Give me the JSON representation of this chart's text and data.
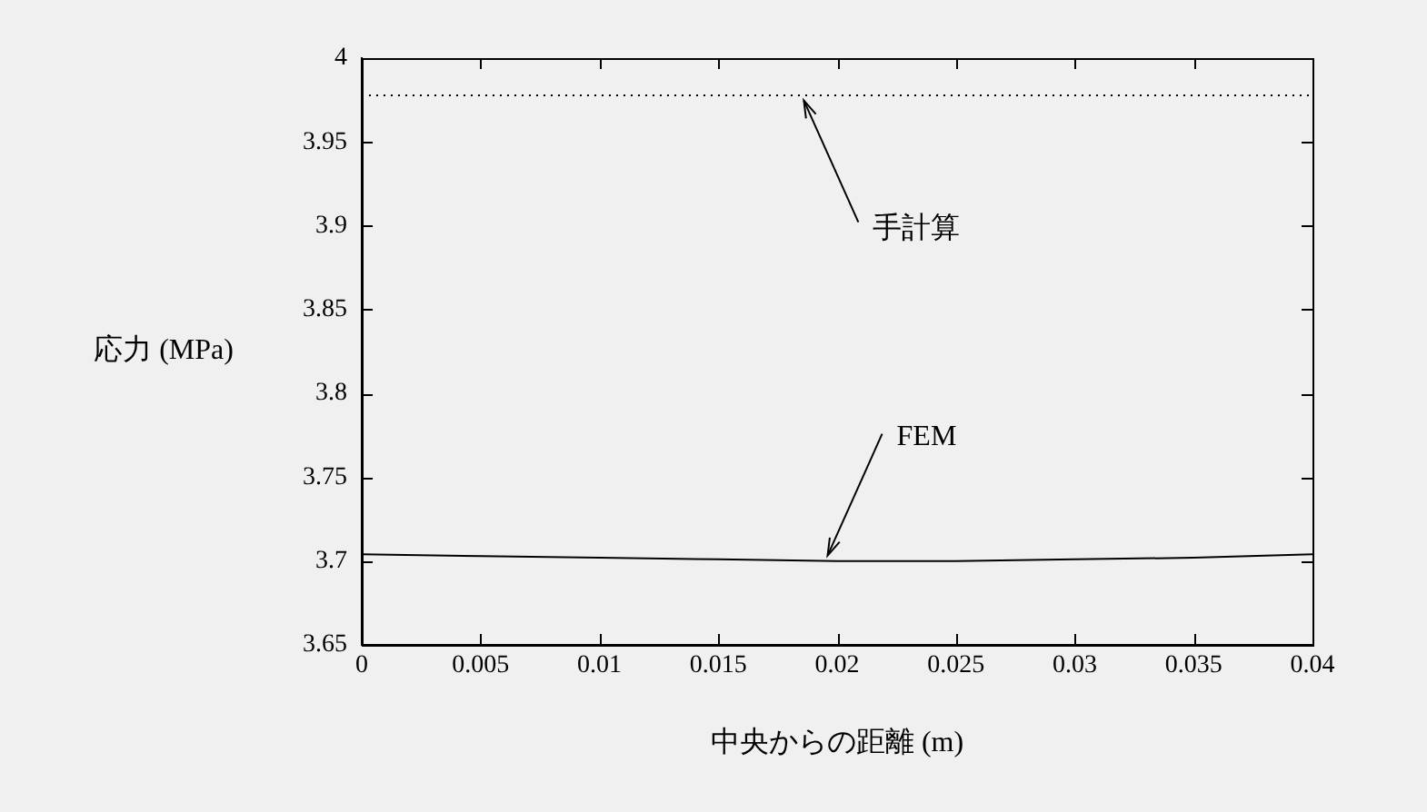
{
  "chart_data": {
    "type": "line",
    "xlabel": "中央からの距離 (m)",
    "ylabel": "応力 (MPa)",
    "x": [
      0,
      0.005,
      0.01,
      0.015,
      0.02,
      0.025,
      0.03,
      0.035,
      0.04
    ],
    "series": [
      {
        "color": "#000000",
        "values": [
          3.704,
          3.703,
          3.702,
          3.701,
          3.7,
          3.7,
          3.701,
          3.702,
          3.704
        ]
      }
    ],
    "ref_lines": [
      {
        "axis": "y",
        "value": 3.978,
        "line_style": "dotted",
        "color": "#000000"
      }
    ],
    "annotations": [
      {
        "text": "手計算",
        "x": 0.0186,
        "y": 3.978
      },
      {
        "text": "FEM",
        "x": 0.0196,
        "y": 3.7
      }
    ],
    "xlim": [
      0,
      0.04
    ],
    "xticks": [
      0,
      0.005,
      0.01,
      0.015,
      0.02,
      0.025,
      0.03,
      0.035,
      0.04
    ],
    "ylim": [
      3.65,
      4
    ],
    "yticks": [
      3.65,
      3.7,
      3.75,
      3.8,
      3.85,
      3.9,
      3.95,
      4
    ],
    "grid": false,
    "legend": false,
    "marker": "none",
    "line_style": "solid"
  }
}
